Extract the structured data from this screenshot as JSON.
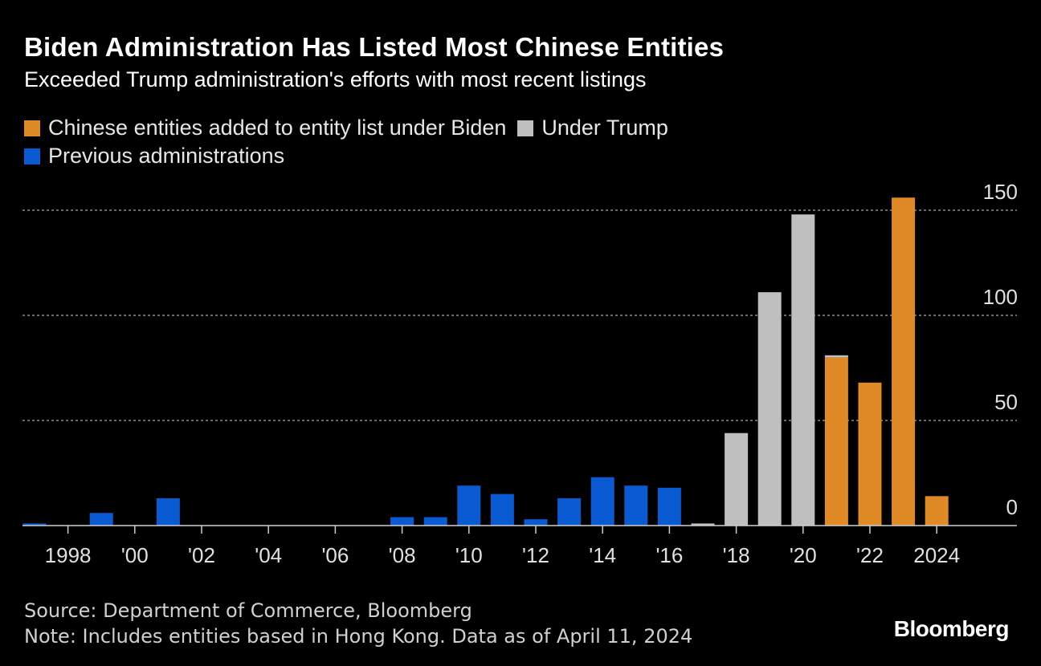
{
  "header": {
    "title": "Biden Administration Has Listed Most Chinese Entities",
    "subtitle": "Exceeded Trump administration's efforts with most recent listings"
  },
  "legend": {
    "biden": "Chinese entities added to entity list under Biden",
    "trump": "Under Trump",
    "previous": "Previous administrations"
  },
  "colors": {
    "biden": "#e08a26",
    "trump": "#bfbfbf",
    "previous": "#0a5bd3",
    "grid": "#8a8a8a",
    "axis": "#cfcfcf"
  },
  "footer": {
    "source": "Source: Department of Commerce, Bloomberg",
    "note": "Note: Includes entities based in Hong Kong. Data as of April 11, 2024"
  },
  "brand": "Bloomberg",
  "chart_data": {
    "type": "bar",
    "title": "Biden Administration Has Listed Most Chinese Entities",
    "xlabel": "",
    "ylabel": "",
    "ylim": [
      0,
      150
    ],
    "yticks": [
      0,
      50,
      100,
      150
    ],
    "grid": true,
    "legend_position": "top-left",
    "categories": [
      1997,
      1998,
      1999,
      2000,
      2001,
      2002,
      2003,
      2004,
      2005,
      2006,
      2007,
      2008,
      2009,
      2010,
      2011,
      2012,
      2013,
      2014,
      2015,
      2016,
      2017,
      2018,
      2019,
      2020,
      2021,
      2022,
      2023,
      2024
    ],
    "values": [
      1,
      0,
      6,
      0,
      13,
      0,
      0,
      0,
      0,
      0,
      0,
      4,
      4,
      19,
      15,
      3,
      13,
      23,
      19,
      18,
      1,
      44,
      111,
      148,
      81,
      68,
      156,
      14
    ],
    "groups": [
      "previous",
      "previous",
      "previous",
      "previous",
      "previous",
      "previous",
      "previous",
      "previous",
      "previous",
      "previous",
      "previous",
      "previous",
      "previous",
      "previous",
      "previous",
      "previous",
      "previous",
      "previous",
      "previous",
      "previous",
      "trump",
      "trump",
      "trump",
      "trump",
      "biden",
      "biden",
      "biden",
      "biden"
    ],
    "split_bars": [
      {
        "year": 2021,
        "trump": 1,
        "biden": 80
      }
    ],
    "xtick_labels": [
      {
        "year": 1998,
        "label": "1998"
      },
      {
        "year": 2000,
        "label": "'00"
      },
      {
        "year": 2002,
        "label": "'02"
      },
      {
        "year": 2004,
        "label": "'04"
      },
      {
        "year": 2006,
        "label": "'06"
      },
      {
        "year": 2008,
        "label": "'08"
      },
      {
        "year": 2010,
        "label": "'10"
      },
      {
        "year": 2012,
        "label": "'12"
      },
      {
        "year": 2014,
        "label": "'14"
      },
      {
        "year": 2016,
        "label": "'16"
      },
      {
        "year": 2018,
        "label": "'18"
      },
      {
        "year": 2020,
        "label": "'20"
      },
      {
        "year": 2022,
        "label": "'22"
      },
      {
        "year": 2024,
        "label": "2024"
      }
    ]
  }
}
